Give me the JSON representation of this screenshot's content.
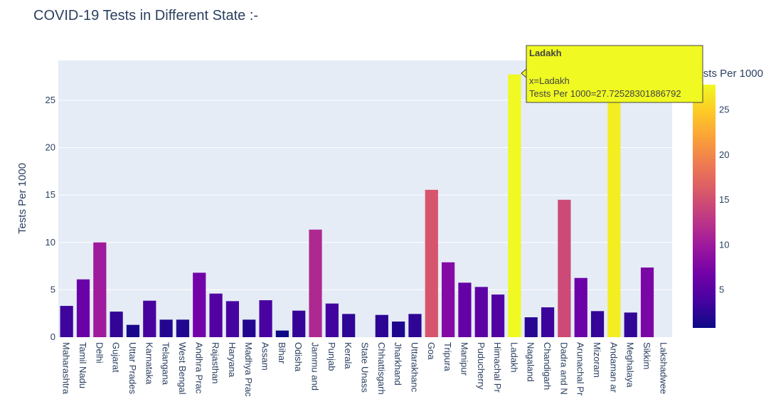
{
  "chart_data": {
    "type": "bar",
    "title": "COVID-19 Tests in Different State :-",
    "xlabel": "",
    "ylabel": "Tests Per 1000",
    "ylim": [
      0,
      29.2
    ],
    "yticks": [
      0,
      5,
      10,
      15,
      20,
      25
    ],
    "grid": true,
    "categories": [
      "Maharashtra",
      "Tamil Nadu",
      "Delhi",
      "Gujarat",
      "Uttar Pradesh",
      "Karnataka",
      "Telangana",
      "West Bengal",
      "Andhra Pradesh",
      "Rajasthan",
      "Haryana",
      "Madhya Pradesh",
      "Assam",
      "Bihar",
      "Odisha",
      "Jammu and Kashmir",
      "Punjab",
      "Kerala",
      "State Unassigned",
      "Chhattisgarh",
      "Jharkhand",
      "Uttarakhand",
      "Goa",
      "Tripura",
      "Manipur",
      "Puducherry",
      "Himachal Pradesh",
      "Ladakh",
      "Nagaland",
      "Chandigarh",
      "Dadra and Nagar Haveli and Daman and Diu",
      "Arunachal Pradesh",
      "Mizoram",
      "Andaman and Nicobar Islands",
      "Meghalaya",
      "Sikkim",
      "Lakshadweep"
    ],
    "tick_labels": [
      "Maharashtra",
      "Tamil Nadu",
      "Delhi",
      "Gujarat",
      "Uttar Prades",
      "Karnataka",
      "Telangana",
      "West Bengal",
      "Andhra Prac",
      "Rajasthan",
      "Haryana",
      "Madhya Prac",
      "Assam",
      "Bihar",
      "Odisha",
      "Jammu and",
      "Punjab",
      "Kerala",
      "State Unass",
      "Chhattisgarh",
      "Jharkhand",
      "Uttarakhanc",
      "Goa",
      "Tripura",
      "Manipur",
      "Puducherry",
      "Himachal Pr",
      "Ladakh",
      "Nagaland",
      "Chandigarh",
      "Dadra and N",
      "Arunachal Pr",
      "Mizoram",
      "Andaman ar",
      "Meghalaya",
      "Sikkim",
      "Lakshadwee"
    ],
    "values": [
      3.3,
      6.1,
      10.0,
      2.7,
      1.3,
      3.85,
      1.85,
      1.85,
      6.8,
      4.6,
      3.8,
      1.85,
      3.9,
      0.7,
      2.8,
      11.35,
      3.55,
      2.45,
      0.0,
      2.35,
      1.65,
      2.45,
      15.55,
      7.9,
      5.75,
      5.3,
      4.5,
      27.72528301886792,
      2.1,
      3.15,
      14.5,
      6.25,
      2.75,
      27.0,
      2.6,
      7.35,
      0.0
    ],
    "colorbar": {
      "title": "Tests Per 1000",
      "min": 0.7,
      "max": 27.72528301886792,
      "ticks": [
        5,
        10,
        15,
        20,
        25
      ],
      "colorscale": [
        "#0d0887",
        "#46039f",
        "#7201a8",
        "#9c179e",
        "#bd3786",
        "#d8576b",
        "#ed7953",
        "#fb9f3a",
        "#fdca26",
        "#f0f921"
      ]
    },
    "tooltip": {
      "title": "Ladakh",
      "line_x": "x=Ladakh",
      "line_y": "Tests Per 1000=27.72528301886792"
    }
  }
}
